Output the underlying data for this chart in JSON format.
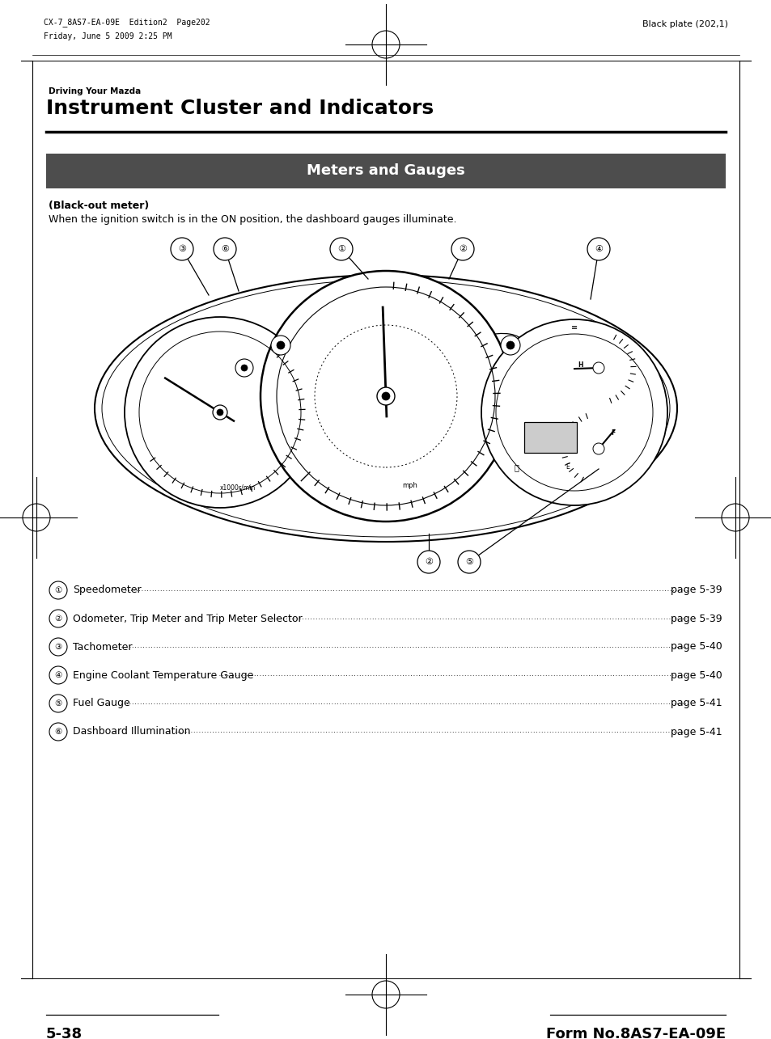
{
  "bg_color": "#ffffff",
  "page_width": 9.54,
  "page_height": 12.85,
  "header_left_line1": "CX-7_8AS7-EA-09E  Edition2  Page202",
  "header_left_line2": "Friday, June 5 2009 2:25 PM",
  "header_right": "Black plate (202,1)",
  "section_label": "Driving Your Mazda",
  "section_title": "Instrument Cluster and Indicators",
  "gray_bar_text": "Meters and Gauges",
  "gray_bar_color": "#4d4d4d",
  "gray_bar_text_color": "#ffffff",
  "bold_subtitle": "(Black-out meter)",
  "body_text": "When the ignition switch is in the ON position, the dashboard gauges illuminate.",
  "list_items": [
    [
      "①",
      "Speedometer",
      "page 5-39"
    ],
    [
      "②",
      "Odometer, Trip Meter and Trip Meter Selector",
      "page 5-39"
    ],
    [
      "③",
      "Tachometer",
      "page 5-40"
    ],
    [
      "④",
      "Engine Coolant Temperature Gauge",
      "page 5-40"
    ],
    [
      "⑤",
      "Fuel Gauge",
      "page 5-41"
    ],
    [
      "⑥",
      "Dashboard Illumination",
      "page 5-41"
    ]
  ],
  "footer_left": "5-38",
  "footer_right": "Form No.8AS7-EA-09E"
}
